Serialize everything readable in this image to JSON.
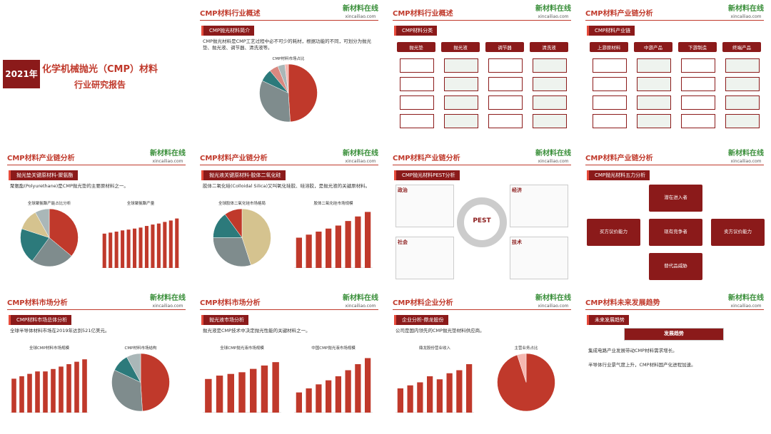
{
  "brand": {
    "name": "新材料在线",
    "url": "xincailiao.com"
  },
  "cover": {
    "year": "2021年",
    "title": "化学机械抛光（CMP）材料",
    "subtitle": "行业研究报告"
  },
  "slides": [
    {
      "title": "CMP材料行业概述",
      "tag": "CMP抛光材料简介",
      "text": [
        "CMP抛光材料是CMP工艺过程中必不可少的耗材，根据功能的不同，可划分为抛光垫、抛光液、调节器、清洗液等。"
      ],
      "charts": [
        {
          "type": "pie",
          "title": "CMP材料市场占比",
          "values": [
            49,
            33,
            7,
            5,
            4,
            2
          ],
          "colors": [
            "#c0392b",
            "#7f8c8d",
            "#2c7a7b",
            "#d98880",
            "#aab7b8",
            "#f5b7b1"
          ]
        }
      ]
    },
    {
      "title": "CMP材料行业概述",
      "tag": "CMP材料分类",
      "chain": [
        "抛光垫",
        "抛光液",
        "调节器",
        "清洗液"
      ]
    },
    {
      "title": "CMP材料产业链分析",
      "tag": "CMP材料产业链",
      "chain": [
        "上游原材料",
        "中游产品",
        "下游制造",
        "终端产品"
      ]
    },
    {
      "title": "CMP材料产业链分析",
      "tag": "抛光垫关键原材料-聚氨酯",
      "text": [
        "聚氨酯(Polyurethane)是CMP抛光垫的主要原材料之一。"
      ],
      "charts": [
        {
          "type": "pie",
          "title": "全球聚氨酯产能占比分析",
          "values": [
            36,
            24,
            20,
            12,
            8
          ],
          "colors": [
            "#c0392b",
            "#7f8c8d",
            "#2c7a7b",
            "#d5c38f",
            "#aab7b8"
          ]
        },
        {
          "type": "bar",
          "title": "全球聚氨酯产量",
          "values": [
            17,
            17.5,
            18,
            18.6,
            19,
            19.5,
            20,
            20.8,
            21.5,
            22,
            22.8,
            23.5,
            24.5
          ],
          "ylim": [
            0,
            30
          ],
          "color": "#c0392b"
        }
      ]
    },
    {
      "title": "CMP材料产业链分析",
      "tag": "抛光液关键原材料-胶体二氧化硅",
      "text": [
        "胶体二氧化硅(Colloidal Silica)又叫氧化硅胶、硅溶胶，是抛光液的关键原材料。"
      ],
      "charts": [
        {
          "type": "pie",
          "title": "全球胶体二氧化硅市场格局",
          "values": [
            45,
            30,
            15,
            10
          ],
          "colors": [
            "#d5c38f",
            "#7f8c8d",
            "#2c7a7b",
            "#c0392b"
          ]
        },
        {
          "type": "bar",
          "title": "胶体二氧化硅市场规模",
          "values": [
            10,
            11,
            12,
            13,
            14,
            15.5,
            17,
            18.5
          ],
          "ylim": [
            0,
            20
          ],
          "color": "#c0392b"
        }
      ]
    },
    {
      "title": "CMP材料产业链分析",
      "tag": "CMP抛光材料PEST分析",
      "pest": [
        "政治",
        "经济",
        "社会",
        "技术"
      ],
      "center": "PEST"
    },
    {
      "title": "CMP材料产业链分析",
      "tag": "CMP抛光材料五力分析",
      "forces": [
        "潜在进入者",
        "买方议价能力",
        "现有竞争者",
        "卖方议价能力",
        "替代品威胁"
      ]
    },
    {
      "title": "CMP材料市场分析",
      "tag": "CMP材料市场总体分析",
      "text": [
        "全球半导体材料市场在2019年达到521亿美元。"
      ],
      "charts": [
        {
          "type": "bar",
          "title": "全球CMP材料市场规模",
          "values": [
            14,
            15,
            16,
            17,
            17,
            18,
            19,
            20,
            21,
            22
          ],
          "ylim": [
            0,
            25
          ],
          "color": "#c0392b"
        },
        {
          "type": "pie",
          "title": "CMP材料市场结构",
          "values": [
            49,
            33,
            10,
            8
          ],
          "colors": [
            "#c0392b",
            "#7f8c8d",
            "#2c7a7b",
            "#aab7b8"
          ]
        }
      ]
    },
    {
      "title": "CMP材料市场分析",
      "tag": "抛光液市场分析",
      "text": [
        "抛光液是CMP技术中决定抛光性能的关键材料之一。"
      ],
      "charts": [
        {
          "type": "bar",
          "title": "全球CMP抛光液市场规模",
          "values": [
            10,
            11,
            11.5,
            12,
            13,
            14,
            15
          ],
          "ylim": [
            0,
            18
          ],
          "color": "#c0392b"
        },
        {
          "type": "bar",
          "title": "中国CMP抛光液市场规模",
          "values": [
            10,
            12,
            14,
            16,
            18,
            21,
            24,
            27
          ],
          "ylim": [
            0,
            30
          ],
          "color": "#c0392b"
        }
      ]
    },
    {
      "title": "CMP材料企业分析",
      "tag": "企业分析-鼎龙股份",
      "text": [
        "公司是国内领先的CMP抛光垫材料供应商。"
      ],
      "charts": [
        {
          "type": "bar",
          "title": "鼎龙股份营业收入",
          "values": [
            8,
            9,
            10,
            12,
            11,
            13,
            14,
            16
          ],
          "ylim": [
            0,
            20
          ],
          "color": "#c0392b"
        },
        {
          "type": "pie",
          "title": "主营业务占比",
          "values": [
            95,
            5
          ],
          "colors": [
            "#c0392b",
            "#f5b7b1"
          ]
        }
      ]
    },
    {
      "title": "CMP材料未来发展趋势",
      "tag": "未来发展趋势",
      "trend": "发展趋势",
      "text": [
        "集成电路产业发展带动CMP材料需求增长。",
        "半导体行业景气度上升，CMP材料国产化进程加速。"
      ]
    }
  ]
}
